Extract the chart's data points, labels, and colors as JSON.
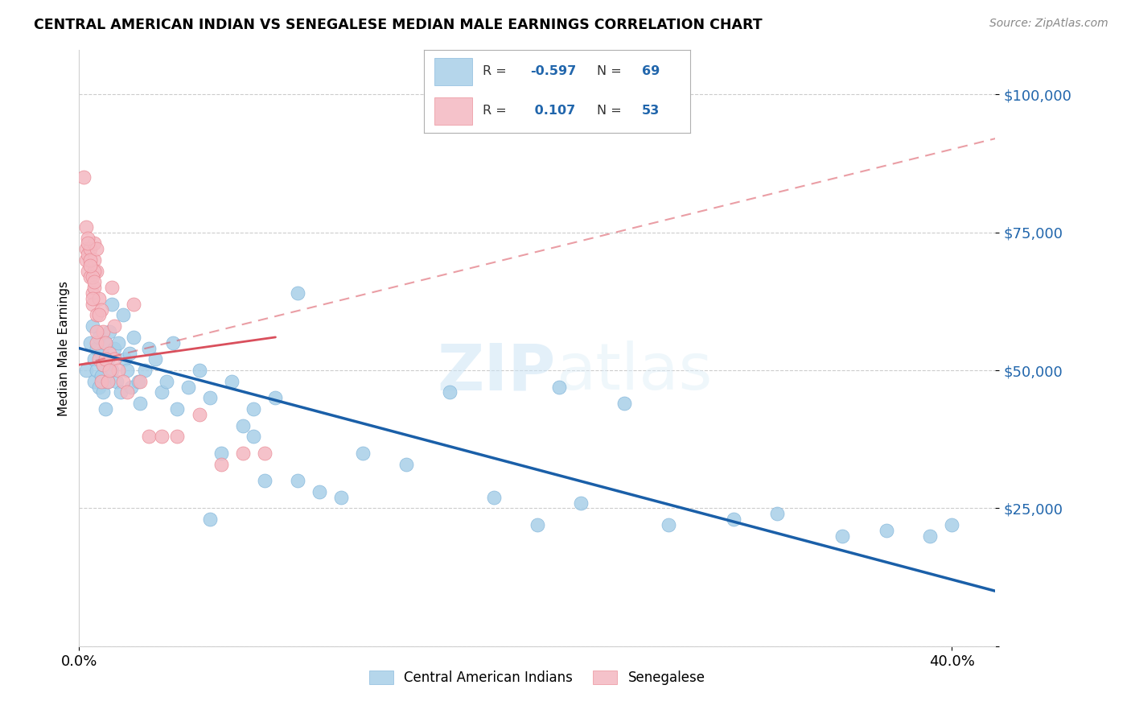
{
  "title": "CENTRAL AMERICAN INDIAN VS SENEGALESE MEDIAN MALE EARNINGS CORRELATION CHART",
  "source": "Source: ZipAtlas.com",
  "ylabel": "Median Male Earnings",
  "yticks": [
    0,
    25000,
    50000,
    75000,
    100000
  ],
  "ytick_labels": [
    "",
    "$25,000",
    "$50,000",
    "$75,000",
    "$100,000"
  ],
  "xticks": [
    0.0,
    0.4
  ],
  "xtick_labels": [
    "0.0%",
    "40.0%"
  ],
  "xlim": [
    0.0,
    0.42
  ],
  "ylim": [
    0,
    108000
  ],
  "blue_color": "#a8cfe8",
  "blue_edge_color": "#7fb3d9",
  "pink_color": "#f4b8c1",
  "pink_edge_color": "#e8848f",
  "blue_line_color": "#1a5fa8",
  "pink_line_color": "#d94f5c",
  "watermark_zip": "ZIP",
  "watermark_atlas": "atlas",
  "legend_blue_r": "-0.597",
  "legend_blue_n": "69",
  "legend_pink_r": "0.107",
  "legend_pink_n": "53",
  "blue_scatter_x": [
    0.003,
    0.005,
    0.006,
    0.007,
    0.007,
    0.008,
    0.008,
    0.009,
    0.009,
    0.01,
    0.01,
    0.011,
    0.011,
    0.012,
    0.012,
    0.013,
    0.013,
    0.014,
    0.015,
    0.015,
    0.016,
    0.017,
    0.018,
    0.019,
    0.02,
    0.021,
    0.022,
    0.023,
    0.024,
    0.025,
    0.027,
    0.028,
    0.03,
    0.032,
    0.035,
    0.038,
    0.04,
    0.043,
    0.045,
    0.05,
    0.055,
    0.06,
    0.065,
    0.07,
    0.075,
    0.08,
    0.085,
    0.09,
    0.1,
    0.11,
    0.12,
    0.13,
    0.15,
    0.17,
    0.19,
    0.21,
    0.23,
    0.25,
    0.27,
    0.3,
    0.32,
    0.35,
    0.37,
    0.39,
    0.4,
    0.22,
    0.1,
    0.08,
    0.06
  ],
  "blue_scatter_y": [
    50000,
    55000,
    58000,
    52000,
    48000,
    54000,
    50000,
    56000,
    47000,
    53000,
    49000,
    51000,
    46000,
    55000,
    43000,
    52000,
    48000,
    57000,
    50000,
    62000,
    54000,
    48000,
    55000,
    46000,
    60000,
    52000,
    50000,
    53000,
    47000,
    56000,
    48000,
    44000,
    50000,
    54000,
    52000,
    46000,
    48000,
    55000,
    43000,
    47000,
    50000,
    45000,
    35000,
    48000,
    40000,
    43000,
    30000,
    45000,
    30000,
    28000,
    27000,
    35000,
    33000,
    46000,
    27000,
    22000,
    26000,
    44000,
    22000,
    23000,
    24000,
    20000,
    21000,
    20000,
    22000,
    47000,
    64000,
    38000,
    23000
  ],
  "pink_scatter_x": [
    0.002,
    0.003,
    0.003,
    0.004,
    0.004,
    0.005,
    0.005,
    0.006,
    0.006,
    0.007,
    0.007,
    0.007,
    0.008,
    0.008,
    0.008,
    0.009,
    0.009,
    0.01,
    0.01,
    0.011,
    0.011,
    0.012,
    0.013,
    0.014,
    0.015,
    0.016,
    0.018,
    0.02,
    0.022,
    0.025,
    0.028,
    0.032,
    0.038,
    0.045,
    0.055,
    0.065,
    0.075,
    0.085,
    0.012,
    0.014,
    0.016,
    0.007,
    0.009,
    0.003,
    0.004,
    0.005,
    0.006,
    0.008,
    0.008,
    0.007,
    0.006,
    0.005,
    0.004
  ],
  "pink_scatter_y": [
    85000,
    72000,
    70000,
    71000,
    68000,
    67000,
    72000,
    64000,
    62000,
    73000,
    65000,
    70000,
    60000,
    55000,
    68000,
    52000,
    63000,
    48000,
    61000,
    57000,
    51000,
    55000,
    48000,
    53000,
    65000,
    52000,
    50000,
    48000,
    46000,
    62000,
    48000,
    38000,
    38000,
    38000,
    42000,
    33000,
    35000,
    35000,
    52000,
    50000,
    58000,
    68000,
    60000,
    76000,
    74000,
    70000,
    67000,
    72000,
    57000,
    66000,
    63000,
    69000,
    73000
  ],
  "blue_line_x": [
    0.0,
    0.42
  ],
  "blue_line_y": [
    54000,
    10000
  ],
  "pink_solid_line_x": [
    0.0,
    0.09
  ],
  "pink_solid_line_y": [
    51000,
    56000
  ],
  "pink_dash_line_x": [
    0.0,
    0.42
  ],
  "pink_dash_line_y": [
    51000,
    92000
  ]
}
